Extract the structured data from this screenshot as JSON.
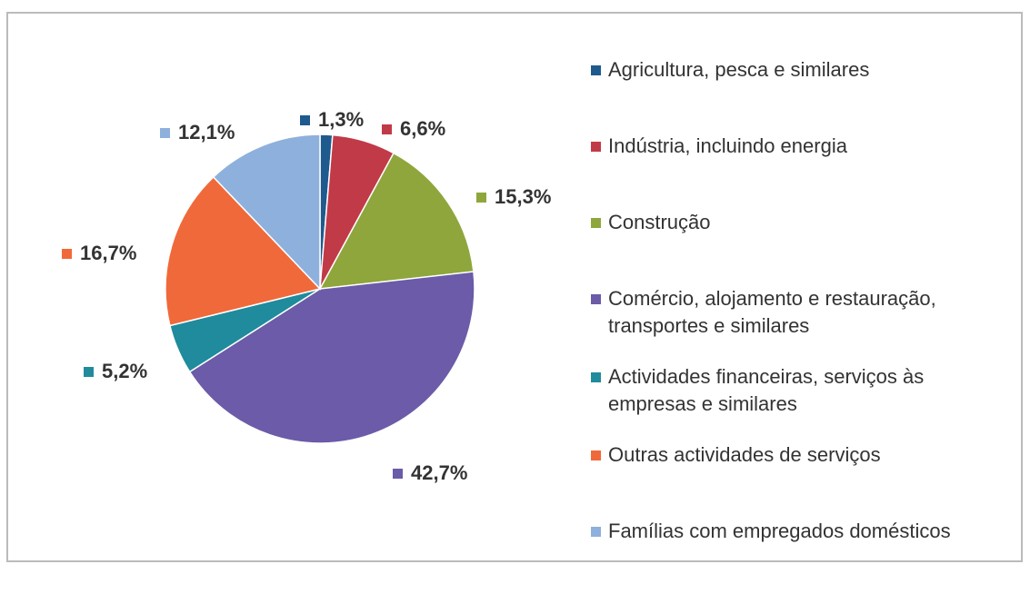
{
  "chart_data": {
    "type": "pie",
    "categories": [
      "Agricultura, pesca e similares",
      "Indústria, incluindo energia",
      "Construção",
      "Comércio, alojamento e restauração, transportes e similares",
      "Actividades financeiras, serviços às empresas e similares",
      "Outras actividades de serviços",
      "Famílias com empregados domésticos"
    ],
    "values": [
      1.3,
      6.6,
      15.3,
      42.7,
      5.2,
      16.7,
      12.1
    ],
    "value_labels": [
      "1,3%",
      "6,6%",
      "15,3%",
      "42,7%",
      "5,2%",
      "16,7%",
      "12,1%"
    ],
    "colors": [
      "#1f5a8e",
      "#c13a48",
      "#8ea63c",
      "#6b5ba8",
      "#1f8b9c",
      "#f0693a",
      "#8eb0dc"
    ],
    "legend": "right"
  }
}
